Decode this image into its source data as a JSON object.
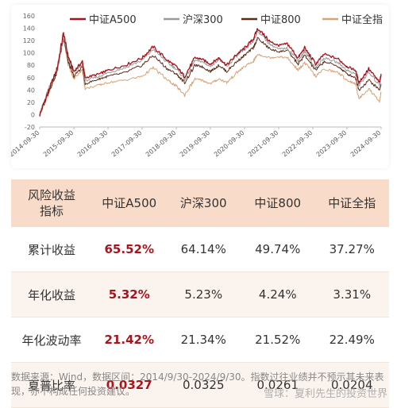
{
  "chart_data": {
    "type": "line",
    "legend": [
      "中证A500",
      "沪深300",
      "中证800",
      "中证全指"
    ],
    "legend_position": "top",
    "colors": {
      "中证A500": "#a8141d",
      "沪深300": "#9a9a9a",
      "中证800": "#5e2a16",
      "中证全指": "#d9a276"
    },
    "ylim": [
      -20,
      160
    ],
    "yticks": [
      -20,
      0,
      20,
      40,
      60,
      80,
      100,
      120,
      140,
      160
    ],
    "xticks": [
      "2014-09-30",
      "2015-09-30",
      "2016-09-30",
      "2017-09-30",
      "2018-09-30",
      "2019-09-30",
      "2020-09-30",
      "2021-09-30",
      "2022-09-30",
      "2023-09-30",
      "2024-09-30"
    ],
    "x": [
      "2014-09-30",
      "2014-12-31",
      "2015-03-31",
      "2015-06-12",
      "2015-07-31",
      "2015-09-30",
      "2015-12-31",
      "2016-01-29",
      "2016-06-30",
      "2016-09-30",
      "2017-03-31",
      "2017-09-30",
      "2018-01-26",
      "2018-06-29",
      "2018-09-30",
      "2018-12-28",
      "2019-04-19",
      "2019-06-28",
      "2019-09-30",
      "2019-12-31",
      "2020-03-23",
      "2020-07-10",
      "2020-09-30",
      "2020-12-31",
      "2021-02-18",
      "2021-06-30",
      "2021-09-30",
      "2021-12-31",
      "2022-04-26",
      "2022-07-05",
      "2022-10-31",
      "2023-01-31",
      "2023-06-30",
      "2023-09-30",
      "2023-12-31",
      "2024-02-05",
      "2024-05-20",
      "2024-09-13",
      "2024-09-30"
    ],
    "series": [
      {
        "name": "中证A500",
        "values": [
          0,
          38,
          72,
          132,
          95,
          70,
          86,
          60,
          66,
          72,
          80,
          92,
          110,
          88,
          78,
          62,
          92,
          90,
          82,
          92,
          80,
          98,
          108,
          122,
          140,
          118,
          112,
          115,
          92,
          108,
          82,
          98,
          90,
          78,
          72,
          52,
          74,
          52,
          66
        ]
      },
      {
        "name": "沪深300",
        "values": [
          0,
          40,
          70,
          125,
          92,
          68,
          82,
          55,
          62,
          68,
          76,
          88,
          106,
          84,
          74,
          58,
          88,
          86,
          78,
          90,
          78,
          95,
          105,
          118,
          136,
          114,
          106,
          108,
          88,
          102,
          76,
          92,
          84,
          72,
          66,
          48,
          68,
          48,
          64
        ]
      },
      {
        "name": "中证800",
        "values": [
          0,
          36,
          68,
          125,
          86,
          62,
          78,
          50,
          58,
          62,
          68,
          80,
          96,
          74,
          66,
          52,
          80,
          78,
          70,
          80,
          70,
          86,
          96,
          108,
          124,
          106,
          102,
          104,
          82,
          96,
          72,
          86,
          78,
          66,
          60,
          40,
          56,
          40,
          50
        ]
      },
      {
        "name": "中证全指",
        "values": [
          0,
          34,
          66,
          128,
          82,
          58,
          74,
          42,
          48,
          52,
          56,
          62,
          76,
          56,
          46,
          32,
          58,
          56,
          50,
          58,
          52,
          68,
          78,
          86,
          98,
          92,
          94,
          92,
          72,
          84,
          62,
          74,
          68,
          56,
          50,
          26,
          42,
          22,
          37
        ]
      }
    ]
  },
  "table": {
    "header": [
      "风险收益\n指标",
      "中证A500",
      "沪深300",
      "中证800",
      "中证全指"
    ],
    "rows": [
      {
        "label": "累计收益",
        "values": [
          "65.52%",
          "64.14%",
          "49.74%",
          "37.27%"
        ]
      },
      {
        "label": "年化收益",
        "values": [
          "5.32%",
          "5.23%",
          "4.24%",
          "3.31%"
        ]
      },
      {
        "label": "年化波动率",
        "values": [
          "21.42%",
          "21.34%",
          "21.52%",
          "22.49%"
        ]
      },
      {
        "label": "夏普比率",
        "values": [
          "0.0327",
          "0.0325",
          "0.0261",
          "0.0204"
        ]
      }
    ]
  },
  "footnote": "数据来源：Wind，数据区间：2014/9/30-2024/9/30。指数过往业绩并不预示其未来表现，亦不构成任何投资建议。",
  "watermark": "雪球：夏利先生的投资世界"
}
